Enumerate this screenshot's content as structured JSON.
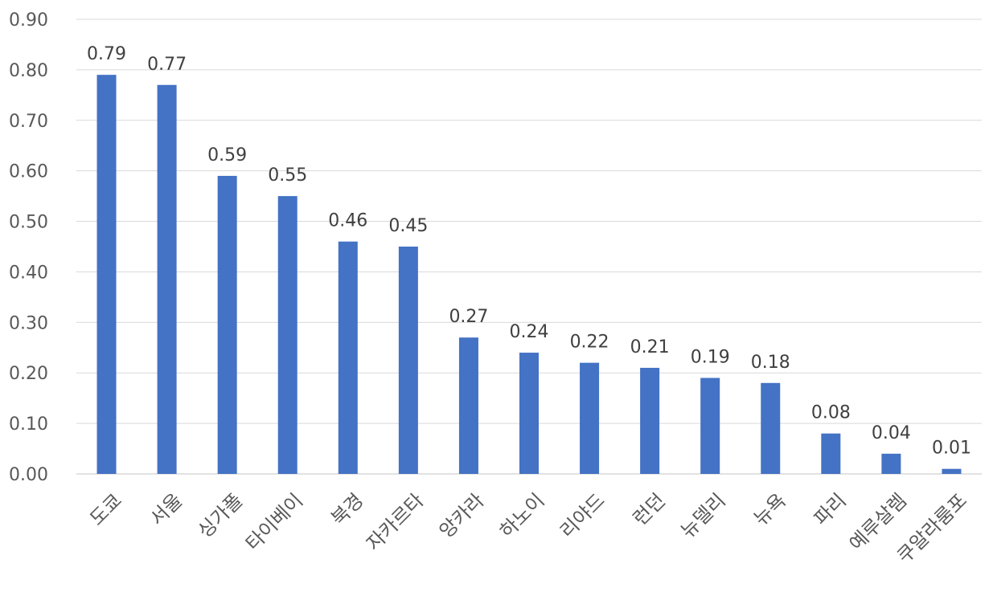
{
  "chart_data": {
    "type": "bar",
    "categories": [
      "도쿄",
      "서울",
      "싱가폴",
      "타이베이",
      "북경",
      "자카르타",
      "앙카라",
      "하노이",
      "리야드",
      "런던",
      "뉴델리",
      "뉴욕",
      "파리",
      "예루살렘",
      "쿠알라룸포"
    ],
    "values": [
      0.79,
      0.77,
      0.59,
      0.55,
      0.46,
      0.45,
      0.27,
      0.24,
      0.22,
      0.21,
      0.19,
      0.18,
      0.08,
      0.04,
      0.01
    ],
    "data_labels": [
      "0.79",
      "0.77",
      "0.59",
      "0.55",
      "0.46",
      "0.45",
      "0.27",
      "0.24",
      "0.22",
      "0.21",
      "0.19",
      "0.18",
      "0.08",
      "0.04",
      "0.01"
    ],
    "y_ticks": [
      "0.00",
      "0.10",
      "0.20",
      "0.30",
      "0.40",
      "0.50",
      "0.60",
      "0.70",
      "0.80",
      "0.90"
    ],
    "ylim": [
      0,
      0.9
    ],
    "grid": true,
    "legend": "none",
    "bar_color": "#4472c4",
    "title": "",
    "xlabel": "",
    "ylabel": ""
  }
}
